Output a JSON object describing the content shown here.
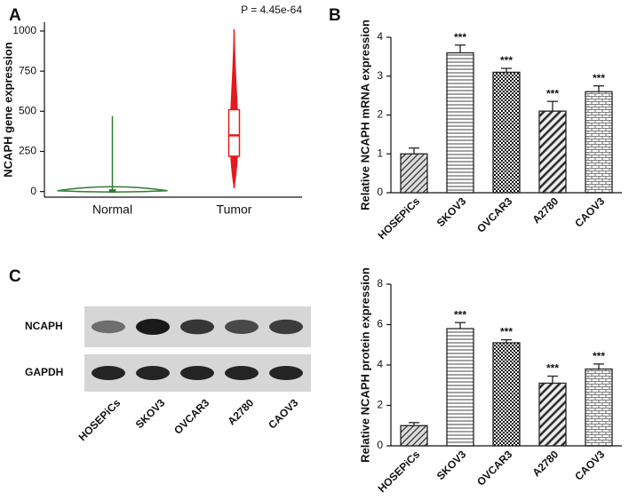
{
  "chart_data": [
    {
      "type": "violin",
      "panel": "A",
      "ylabel": "NCAPH gene expression",
      "annotation": "P = 4.45e-64",
      "categories": [
        "Normal",
        "Tumor"
      ],
      "colors": [
        "#2e7d32",
        "#e41a1c"
      ],
      "boxes": [
        {
          "min": 0,
          "q1": 2,
          "median": 5,
          "q3": 10,
          "max": 470
        },
        {
          "min": 20,
          "q1": 220,
          "median": 350,
          "q3": 510,
          "max": 1010
        }
      ],
      "ylim": [
        -35,
        1055
      ],
      "yticks": [
        0,
        250,
        500,
        750,
        1000
      ]
    },
    {
      "type": "bar",
      "panel": "B",
      "ylabel": "Relative NCAPH mRNA expression",
      "categories": [
        "HOSEPiCs",
        "SKOV3",
        "OVCAR3",
        "A2780",
        "CAOV3"
      ],
      "values": [
        1.0,
        3.6,
        3.1,
        2.1,
        2.6
      ],
      "errors": [
        0.15,
        0.2,
        0.1,
        0.25,
        0.15
      ],
      "annotations": [
        null,
        "***",
        "***",
        "***",
        "***"
      ],
      "patterns": [
        "diag",
        "horiz",
        "grid",
        "diagwide",
        "brick"
      ],
      "color": "#222222",
      "ylim": [
        0,
        4
      ],
      "yticks": [
        0,
        1,
        2,
        3,
        4
      ]
    },
    {
      "type": "bar",
      "ylabel": "Relative NCAPH protein expression",
      "categories": [
        "HOSEPiCs",
        "SKOV3",
        "OVCAR3",
        "A2780",
        "CAOV3"
      ],
      "values": [
        1.0,
        5.8,
        5.1,
        3.1,
        3.8
      ],
      "errors": [
        0.15,
        0.3,
        0.15,
        0.35,
        0.25
      ],
      "annotations": [
        null,
        "***",
        "***",
        "***",
        "***"
      ],
      "patterns": [
        "diag",
        "horiz",
        "grid",
        "diagwide",
        "brick"
      ],
      "color": "#222222",
      "ylim": [
        0,
        8
      ],
      "yticks": [
        0,
        2,
        4,
        6,
        8
      ]
    }
  ],
  "blot": {
    "panel": "C",
    "rows": [
      "NCAPH",
      "GAPDH"
    ],
    "lanes": [
      "HOSEPiCs",
      "SKOV3",
      "OVCAR3",
      "A2780",
      "CAOV3"
    ]
  }
}
